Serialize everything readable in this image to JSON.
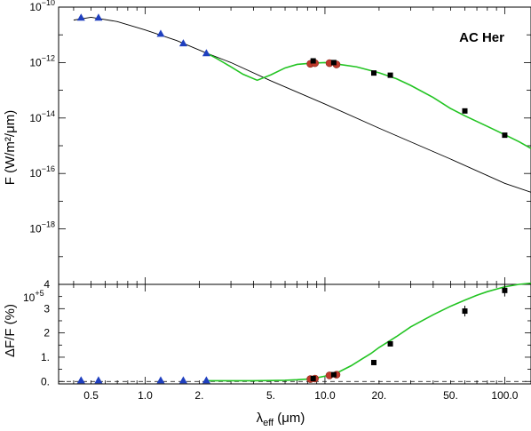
{
  "chart_data": [
    {
      "type": "scatter",
      "panel": "sed",
      "annotation": "AC Her",
      "ylabel": "F (W/m²/μm)",
      "x_scale": "log",
      "y_scale": "log",
      "xlim": [
        0.33,
        140
      ],
      "ylim": [
        1e-20,
        1e-10
      ],
      "x_ticks": [
        0.5,
        1.0,
        2.0,
        5.0,
        10.0,
        20.0,
        50.0,
        100.0
      ],
      "y_ticks": [
        {
          "value": 1e-10,
          "base": "10",
          "exp": "−10"
        },
        {
          "value": 1e-12,
          "base": "10",
          "exp": "−12"
        },
        {
          "value": 1e-14,
          "base": "10",
          "exp": "−14"
        },
        {
          "value": 1e-16,
          "base": "10",
          "exp": "−16"
        },
        {
          "value": 1e-18,
          "base": "10",
          "exp": "−18"
        }
      ],
      "series": [
        {
          "marker": "triangle",
          "color": "#1f3fbf",
          "x": [
            0.44,
            0.55,
            1.22,
            1.63,
            2.19
          ],
          "y": [
            4.2e-11,
            4.2e-11,
            1.1e-11,
            5e-12,
            2.2e-12
          ]
        },
        {
          "marker": "circle",
          "color": "#c0392b",
          "x": [
            8.3,
            8.8,
            10.6,
            11.6
          ],
          "y": [
            9e-13,
            9.5e-13,
            9.5e-13,
            8.5e-13
          ]
        },
        {
          "marker": "square",
          "color": "#000000",
          "x": [
            8.6,
            11.2,
            18.7,
            23.1,
            60.0,
            100.0
          ],
          "y": [
            1.15e-12,
            1e-12,
            4.2e-13,
            3.5e-13,
            1.8e-14,
            2.4e-15
          ]
        },
        {
          "marker": "line",
          "color": "#000000",
          "x": [
            0.4,
            0.5,
            0.7,
            1.0,
            1.5,
            2.19,
            3.0,
            5.0,
            10.0,
            20.0,
            50.0,
            100.0,
            140.0
          ],
          "y": [
            3.4e-11,
            4.3e-11,
            3e-11,
            1.5e-11,
            6.2e-12,
            2.2e-12,
            1e-12,
            2.2e-13,
            3.2e-14,
            4.3e-15,
            3.3e-16,
            4.4e-17,
            2.1e-17
          ]
        },
        {
          "marker": "line",
          "color": "#22c422",
          "x": [
            2.19,
            2.5,
            3.0,
            3.5,
            4.2,
            5.0,
            6.0,
            7.0,
            8.5,
            10.0,
            12.0,
            15.0,
            20.0,
            25.0,
            30.0,
            40.0,
            50.0,
            60.0,
            80.0,
            100.0,
            120.0,
            140.0
          ],
          "y": [
            2.2e-12,
            1.4e-12,
            7e-13,
            3.8e-13,
            2.3e-13,
            3.6e-13,
            6.4e-13,
            8.6e-13,
            9.5e-13,
            1e-12,
            8.6e-13,
            7e-13,
            4.3e-13,
            2.6e-13,
            1.5e-13,
            5.5e-14,
            2.2e-14,
            1.2e-14,
            5e-15,
            2.5e-15,
            1.4e-15,
            8e-16
          ]
        }
      ]
    },
    {
      "type": "scatter",
      "panel": "residuals",
      "ylabel": "ΔF/F (%)",
      "xlabel_main": "λ",
      "xlabel_sub": "eff",
      "xlabel_unit": " (μm)",
      "x_scale": "log",
      "xlim": [
        0.33,
        140
      ],
      "ylim": [
        -0.1,
        4.0
      ],
      "y_multiplier": {
        "base": "10",
        "exp": "+5"
      },
      "x_ticks": [
        {
          "value": 0.5,
          "label": "0.5"
        },
        {
          "value": 1.0,
          "label": "1.0"
        },
        {
          "value": 2.0,
          "label": "2."
        },
        {
          "value": 5.0,
          "label": "5."
        },
        {
          "value": 10.0,
          "label": "10.0"
        },
        {
          "value": 20.0,
          "label": "20."
        },
        {
          "value": 50.0,
          "label": "50."
        },
        {
          "value": 100.0,
          "label": "100.0"
        }
      ],
      "y_ticks": [
        {
          "value": 0,
          "label": "0."
        },
        {
          "value": 1,
          "label": "1."
        },
        {
          "value": 2,
          "label": "2"
        },
        {
          "value": 3,
          "label": "3"
        },
        {
          "value": 4,
          "label": "4"
        }
      ],
      "series": [
        {
          "marker": "triangle",
          "color": "#1f3fbf",
          "x": [
            0.44,
            0.55,
            1.22,
            1.63,
            2.19
          ],
          "y": [
            0.05,
            0.05,
            0.05,
            0.05,
            0.05
          ]
        },
        {
          "marker": "circle",
          "color": "#c0392b",
          "x": [
            8.3,
            8.8,
            10.6,
            11.6
          ],
          "y": [
            0.1,
            0.12,
            0.25,
            0.28
          ]
        },
        {
          "marker": "square",
          "color": "#000000",
          "x": [
            8.6,
            11.2,
            18.7,
            23.1,
            60.0,
            100.0
          ],
          "y": [
            0.12,
            0.28,
            0.78,
            1.55,
            2.9,
            3.75
          ],
          "err": [
            0.05,
            0.05,
            0.05,
            0.05,
            0.22,
            0.25
          ]
        },
        {
          "marker": "line",
          "color": "#22c422",
          "x": [
            2.19,
            3.0,
            4.0,
            5.0,
            6.0,
            7.0,
            8.0,
            9.0,
            10.0,
            12.0,
            14.0,
            16.0,
            18.0,
            20.0,
            25.0,
            30.0,
            40.0,
            50.0,
            60.0,
            70.0,
            80.0,
            100.0,
            120.0,
            140.0
          ],
          "y": [
            0.03,
            0.03,
            0.03,
            0.04,
            0.05,
            0.07,
            0.1,
            0.15,
            0.22,
            0.4,
            0.65,
            0.92,
            1.15,
            1.4,
            1.85,
            2.25,
            2.75,
            3.1,
            3.35,
            3.55,
            3.7,
            3.9,
            4.0,
            4.05
          ]
        }
      ]
    }
  ]
}
